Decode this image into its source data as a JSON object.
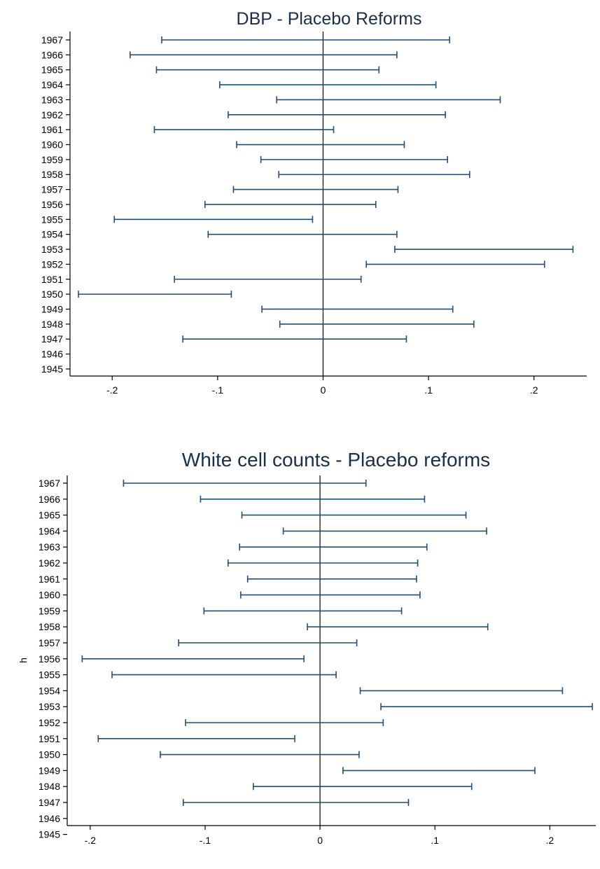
{
  "chart_data": [
    {
      "type": "errorbar",
      "title": "DBP - Placebo Reforms",
      "xlabel": "",
      "ylabel": "",
      "xlim": [
        -0.24,
        0.25
      ],
      "x_ticks": [
        {
          "value": -0.2,
          "label": "-.2"
        },
        {
          "value": -0.1,
          "label": "-.1"
        },
        {
          "value": 0,
          "label": "0"
        },
        {
          "value": 0.1,
          "label": ".1"
        },
        {
          "value": 0.2,
          "label": ".2"
        }
      ],
      "reference_line_x": 0,
      "categories": [
        "1967",
        "1966",
        "1965",
        "1964",
        "1963",
        "1962",
        "1961",
        "1960",
        "1959",
        "1958",
        "1957",
        "1956",
        "1955",
        "1954",
        "1953",
        "1952",
        "1951",
        "1950",
        "1949",
        "1948",
        "1947",
        "1946",
        "1945"
      ],
      "intervals": [
        {
          "year": "1967",
          "low": -0.153,
          "high": 0.12
        },
        {
          "year": "1966",
          "low": -0.183,
          "high": 0.07
        },
        {
          "year": "1965",
          "low": -0.158,
          "high": 0.053
        },
        {
          "year": "1964",
          "low": -0.098,
          "high": 0.107
        },
        {
          "year": "1963",
          "low": -0.044,
          "high": 0.168
        },
        {
          "year": "1962",
          "low": -0.09,
          "high": 0.116
        },
        {
          "year": "1961",
          "low": -0.16,
          "high": 0.01
        },
        {
          "year": "1960",
          "low": -0.082,
          "high": 0.077
        },
        {
          "year": "1959",
          "low": -0.059,
          "high": 0.118
        },
        {
          "year": "1958",
          "low": -0.042,
          "high": 0.139
        },
        {
          "year": "1957",
          "low": -0.085,
          "high": 0.071
        },
        {
          "year": "1956",
          "low": -0.112,
          "high": 0.05
        },
        {
          "year": "1955",
          "low": -0.198,
          "high": -0.01
        },
        {
          "year": "1954",
          "low": -0.109,
          "high": 0.07
        },
        {
          "year": "1953",
          "low": 0.068,
          "high": 0.237
        },
        {
          "year": "1952",
          "low": 0.041,
          "high": 0.21
        },
        {
          "year": "1951",
          "low": -0.141,
          "high": 0.036
        },
        {
          "year": "1950",
          "low": -0.232,
          "high": -0.087
        },
        {
          "year": "1949",
          "low": -0.058,
          "high": 0.123
        },
        {
          "year": "1948",
          "low": -0.041,
          "high": 0.143
        },
        {
          "year": "1947",
          "low": -0.133,
          "high": 0.079
        },
        {
          "year": "1946",
          "low": null,
          "high": null
        },
        {
          "year": "1945",
          "low": null,
          "high": null
        }
      ]
    },
    {
      "type": "errorbar",
      "title": "White cell counts - Placebo reforms",
      "xlabel": "",
      "ylabel": "h",
      "xlim": [
        -0.22,
        0.24
      ],
      "x_ticks": [
        {
          "value": -0.2,
          "label": "-.2"
        },
        {
          "value": -0.1,
          "label": "-.1"
        },
        {
          "value": 0,
          "label": "0"
        },
        {
          "value": 0.1,
          "label": ".1"
        },
        {
          "value": 0.2,
          "label": ".2"
        }
      ],
      "reference_line_x": 0,
      "categories": [
        "1967",
        "1966",
        "1965",
        "1964",
        "1963",
        "1962",
        "1961",
        "1960",
        "1959",
        "1958",
        "1957",
        "1956",
        "1955",
        "1954",
        "1953",
        "1952",
        "1951",
        "1950",
        "1949",
        "1948",
        "1947",
        "1946",
        "1945"
      ],
      "intervals": [
        {
          "year": "1967",
          "low": -0.171,
          "high": 0.04
        },
        {
          "year": "1966",
          "low": -0.104,
          "high": 0.091
        },
        {
          "year": "1965",
          "low": -0.068,
          "high": 0.127
        },
        {
          "year": "1964",
          "low": -0.032,
          "high": 0.145
        },
        {
          "year": "1963",
          "low": -0.07,
          "high": 0.093
        },
        {
          "year": "1962",
          "low": -0.08,
          "high": 0.085
        },
        {
          "year": "1961",
          "low": -0.063,
          "high": 0.084
        },
        {
          "year": "1960",
          "low": -0.069,
          "high": 0.087
        },
        {
          "year": "1959",
          "low": -0.101,
          "high": 0.071
        },
        {
          "year": "1958",
          "low": -0.011,
          "high": 0.146
        },
        {
          "year": "1957",
          "low": -0.123,
          "high": 0.032
        },
        {
          "year": "1956",
          "low": -0.207,
          "high": -0.014
        },
        {
          "year": "1955",
          "low": -0.181,
          "high": 0.014
        },
        {
          "year": "1954",
          "low": 0.035,
          "high": 0.211
        },
        {
          "year": "1953",
          "low": 0.053,
          "high": 0.237
        },
        {
          "year": "1952",
          "low": -0.117,
          "high": 0.055
        },
        {
          "year": "1951",
          "low": -0.193,
          "high": -0.022
        },
        {
          "year": "1950",
          "low": -0.139,
          "high": 0.034
        },
        {
          "year": "1949",
          "low": 0.02,
          "high": 0.187
        },
        {
          "year": "1948",
          "low": -0.058,
          "high": 0.132
        },
        {
          "year": "1947",
          "low": -0.119,
          "high": 0.077
        },
        {
          "year": "1946",
          "low": null,
          "high": null
        },
        {
          "year": "1945",
          "low": null,
          "high": null
        }
      ]
    }
  ],
  "colors": {
    "interval": "#1f4e79",
    "title": "#1a2f4b",
    "axis": "#000000"
  }
}
